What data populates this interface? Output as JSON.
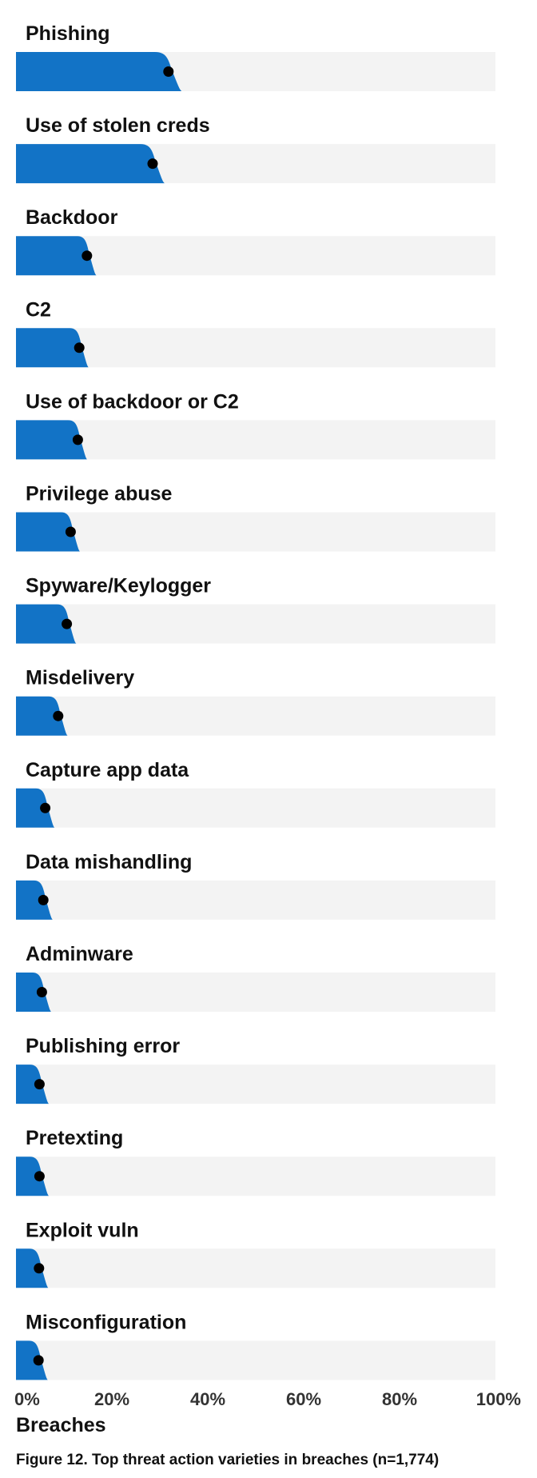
{
  "chart_data": {
    "type": "bar",
    "orientation": "horizontal",
    "style": "slab-with-point-estimate",
    "categories": [
      "Phishing",
      "Use of stolen creds",
      "Backdoor",
      "C2",
      "Use of backdoor or C2",
      "Privilege abuse",
      "Spyware/Keylogger",
      "Misdelivery",
      "Capture app data",
      "Data mishandling",
      "Adminware",
      "Publishing error",
      "Pretexting",
      "Exploit vuln",
      "Misconfiguration"
    ],
    "values": [
      31.8,
      28.5,
      14.8,
      13.2,
      12.9,
      11.4,
      10.6,
      8.8,
      6.1,
      5.7,
      5.4,
      4.9,
      4.9,
      4.8,
      4.7
    ],
    "xlim": [
      0,
      100
    ],
    "xticks": [
      "0%",
      "20%",
      "40%",
      "60%",
      "80%",
      "100%"
    ],
    "xtick_values": [
      0,
      20,
      40,
      60,
      80,
      100
    ],
    "xlabel": "Breaches",
    "title": "Figure 12. Top threat action varieties in breaches (n=1,774)",
    "colors": {
      "bar": "#1273c6",
      "track": "#f3f3f3",
      "point": "#000000"
    },
    "grid": false
  }
}
